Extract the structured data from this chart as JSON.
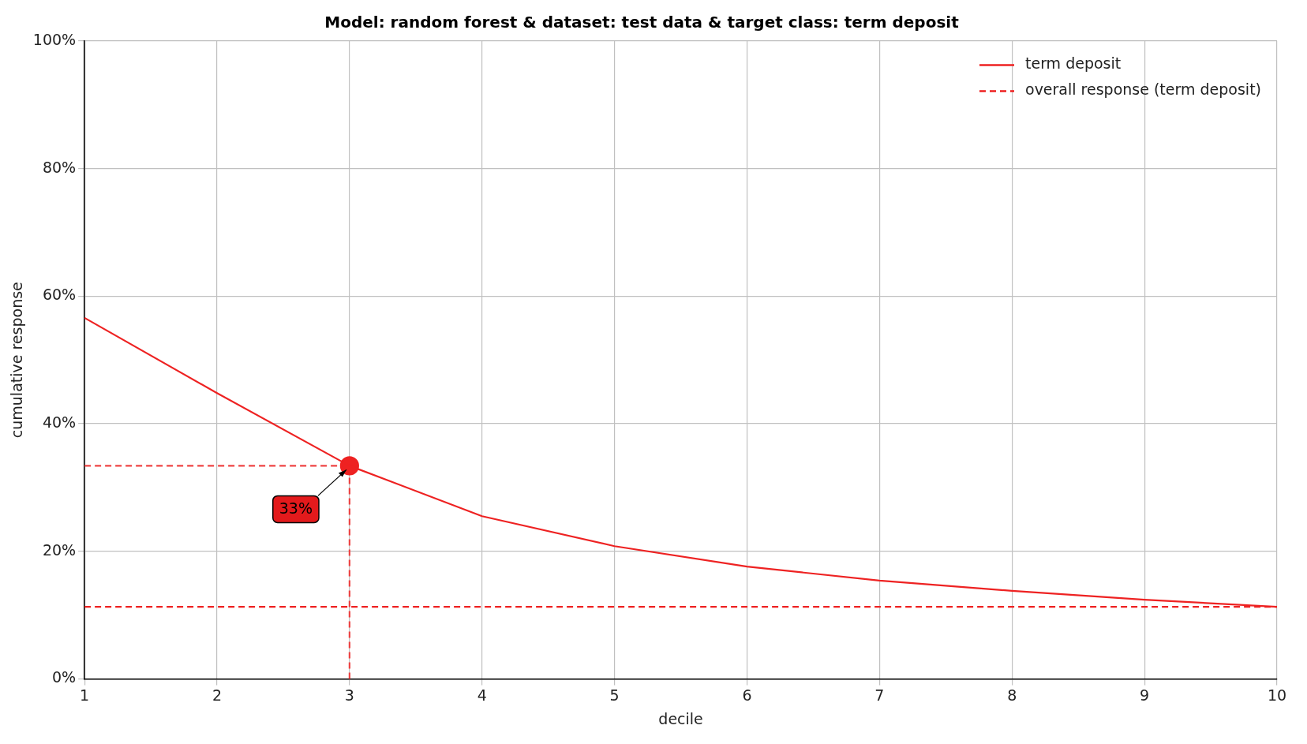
{
  "chart_data": {
    "type": "line",
    "title": "Model: random forest & dataset: test data & target class: term deposit",
    "xlabel": "decile",
    "ylabel": "cumulative response",
    "x": [
      1,
      2,
      3,
      4,
      5,
      6,
      7,
      8,
      9,
      10
    ],
    "series": [
      {
        "name": "term deposit",
        "color": "#ee2222",
        "values": [
          56.6,
          44.8,
          33.4,
          25.5,
          20.8,
          17.6,
          15.4,
          13.8,
          12.4,
          11.3
        ],
        "line_style": "solid",
        "marker": "none"
      },
      {
        "name": "overall response (term deposit)",
        "color": "#ee2222",
        "values": [
          11.3,
          11.3,
          11.3,
          11.3,
          11.3,
          11.3,
          11.3,
          11.3,
          11.3,
          11.3
        ],
        "line_style": "dashed",
        "marker": "none"
      },
      {
        "type": "scatter",
        "color": "#ee2222",
        "values": [
          null,
          null,
          33.4,
          null,
          null,
          null,
          null,
          null,
          null,
          null
        ],
        "marker": "circle"
      }
    ],
    "ref_lines": [
      {
        "axis": "y",
        "value": 33.4,
        "color": "#ee4444",
        "line_style": "dashed"
      },
      {
        "axis": "x",
        "value": 3,
        "color": "#ee4444",
        "line_style": "dashed"
      }
    ],
    "annotations": [
      {
        "text": "33%",
        "x": 3,
        "y": 33.4
      }
    ],
    "xlim": [
      1,
      10
    ],
    "xticks": [
      1,
      2,
      3,
      4,
      5,
      6,
      7,
      8,
      9,
      10
    ],
    "ylim": [
      0,
      100
    ],
    "yticks": [
      {
        "value": 0,
        "label": "0%"
      },
      {
        "value": 20,
        "label": "20%"
      },
      {
        "value": 40,
        "label": "40%"
      },
      {
        "value": 60,
        "label": "60%"
      },
      {
        "value": 80,
        "label": "80%"
      },
      {
        "value": 100,
        "label": "100%"
      }
    ],
    "grid": true,
    "legend": "top right"
  }
}
